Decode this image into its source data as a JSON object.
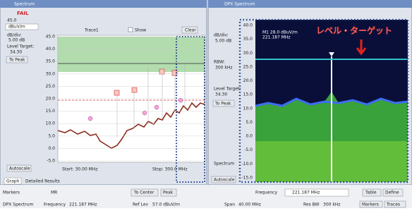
{
  "left_panel": {
    "title": "Spectrum",
    "status": "FAIL",
    "sidebar": {
      "ref_level": "45.0",
      "unit": "dBuV/m",
      "db_div_label": "dB/div:",
      "db_div_value": "5.00 dB",
      "level_target_label": "Level Target:",
      "level_target_value": "34.30",
      "to_peak": "To Peak",
      "autoscale": "Autoscale"
    },
    "toolbar": {
      "trace": "Trace1",
      "show": "Show",
      "clear": "Clear"
    },
    "yticks": [
      "45.0",
      "40.0",
      "35.0",
      "30.0",
      "25.0",
      "20.0",
      "15.0",
      "10.0",
      "5.0",
      "0.0",
      "-5.0"
    ],
    "start": "Start: 30.00 MHz",
    "stop": "Stop: 300.0 MHz",
    "tabs": [
      "Graph",
      "Detailed Results"
    ]
  },
  "right_panel": {
    "title": "DPX Spectrum",
    "marker_readout": "M1 28.0 dBuV/m",
    "marker_freq": "221.187 MHz",
    "annotation": "レベル・ターゲット",
    "sidebar": {
      "db_div_label": "dB/div:",
      "db_div_value": "5.00 dB",
      "rbw_label": "RBW:",
      "rbw_value": "300 kHz",
      "level_target_label": "Level Target:",
      "level_target_value": "34.30",
      "to_peak": "To Peak",
      "spectrum": "Spectrum",
      "autoscale": "Autoscale"
    },
    "yticks": [
      "40.0",
      "35.0",
      "30.0",
      "25.0",
      "20.0",
      "15.0",
      "10.0",
      "5.0",
      "0.0",
      "-5.0",
      "-10.0",
      "-15.0"
    ]
  },
  "bottom_bar": {
    "markers_label": "Markers",
    "marker_select": "MR",
    "to_center": "To Center",
    "peak": "Peak",
    "frequency_label": "Frequency",
    "frequency_value": "221.187 MHz",
    "table": "Table",
    "define": "Define",
    "status_title": "DPX Spectrum",
    "status_freq_label": "Frequency",
    "status_freq_value": "221.187 MHz",
    "ref_lev_label": "Ref Lev",
    "ref_lev_value": "57.0 dBuV/m",
    "span_label": "Span",
    "span_value": "40.00 MHz",
    "res_bw_label": "Res BW",
    "res_bw_value": "300 kHz",
    "markers_btn": "Markers",
    "traces_btn": "Traces"
  }
}
